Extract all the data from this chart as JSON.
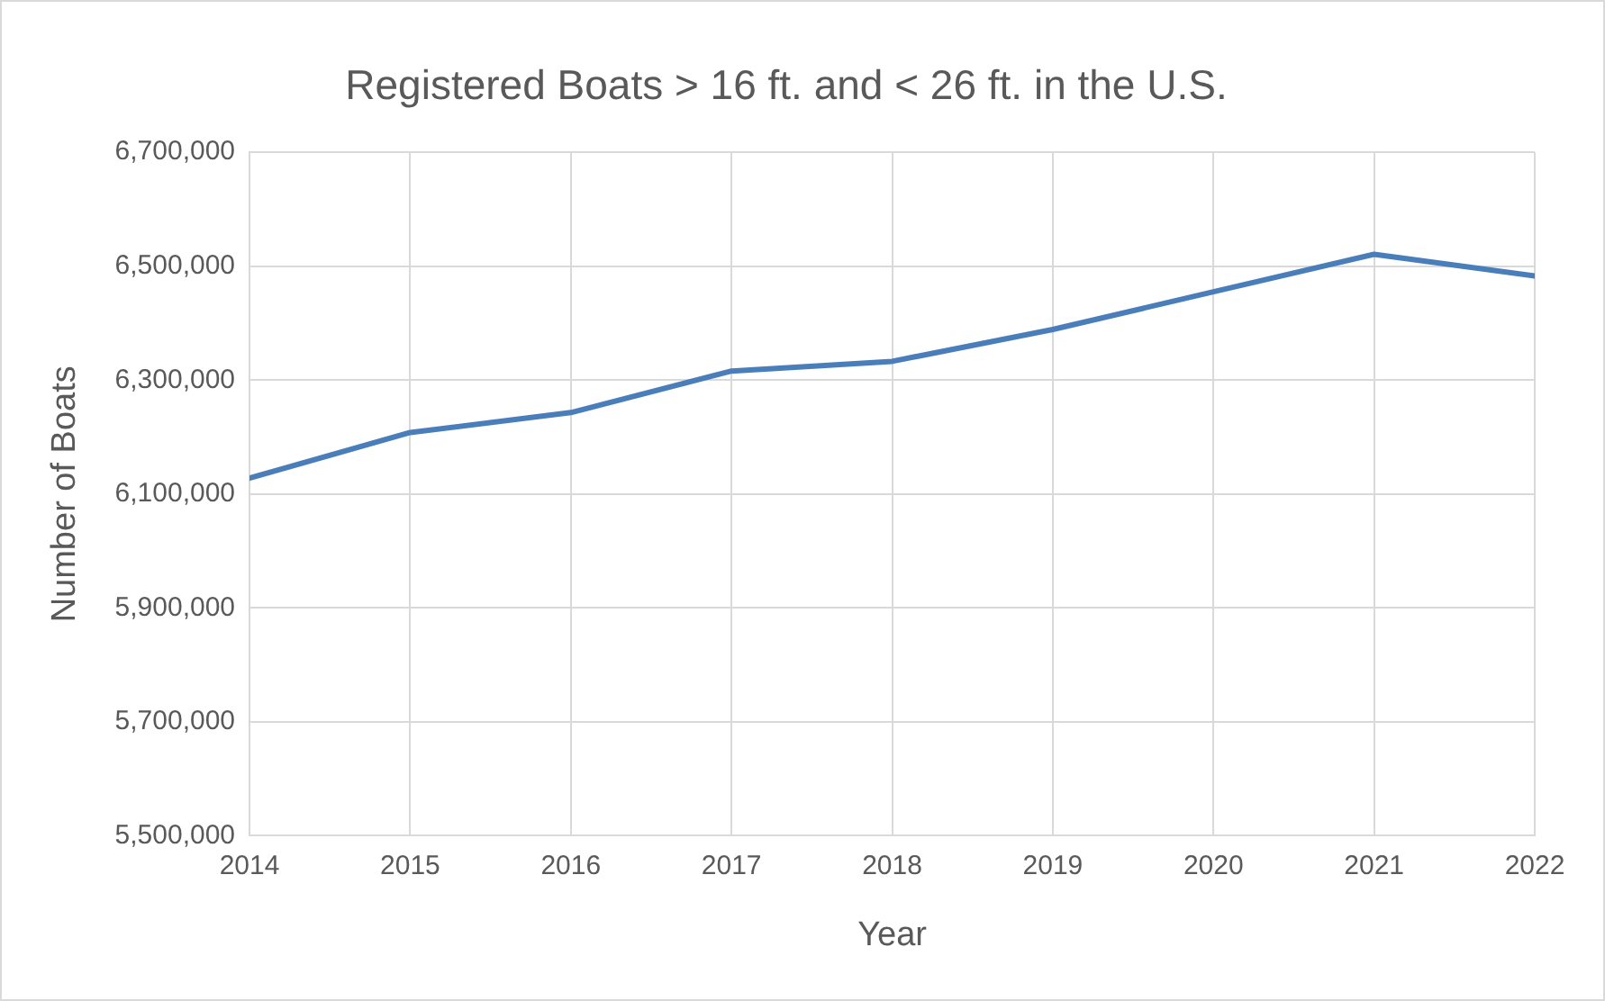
{
  "chart_data": {
    "type": "line",
    "title": "Registered Boats > 16 ft. and < 26 ft. in the U.S.",
    "xlabel": "Year",
    "ylabel": "Number of Boats",
    "x": [
      2014,
      2015,
      2016,
      2017,
      2018,
      2019,
      2020,
      2021,
      2022
    ],
    "series": [
      {
        "color": "#4a7ebb",
        "values": [
          6128000,
          6208000,
          6243000,
          6316000,
          6333000,
          6389000,
          6455000,
          6521000,
          6483000
        ]
      }
    ],
    "xlim": [
      2014,
      2022
    ],
    "xticks": [
      2014,
      2015,
      2016,
      2017,
      2018,
      2019,
      2020,
      2021,
      2022
    ],
    "ylim": [
      5500000,
      6700000
    ],
    "yticks": [
      {
        "value": 5500000,
        "label": "5,500,000"
      },
      {
        "value": 5700000,
        "label": "5,700,000"
      },
      {
        "value": 5900000,
        "label": "5,900,000"
      },
      {
        "value": 6100000,
        "label": "6,100,000"
      },
      {
        "value": 6300000,
        "label": "6,300,000"
      },
      {
        "value": 6500000,
        "label": "6,500,000"
      },
      {
        "value": 6700000,
        "label": "6,700,000"
      }
    ],
    "grid": true,
    "legend": false,
    "marker": "none",
    "line_style": "solid"
  }
}
